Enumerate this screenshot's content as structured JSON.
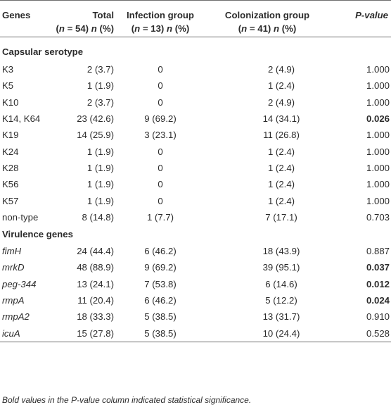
{
  "header": {
    "genes": "Genes",
    "total_line1": "Total",
    "total_line2": "(n = 54) n (%)",
    "infection_line1": "Infection group",
    "infection_line2": "(n = 13) n (%)",
    "colonization_line1": "Colonization group",
    "colonization_line2": "(n = 41) n (%)",
    "pvalue": "P-value"
  },
  "sections": [
    {
      "title": "Capsular serotype",
      "rows": [
        {
          "gene": "K3",
          "total": "2 (3.7)",
          "infection": "0",
          "colonization": "2 (4.9)",
          "p": "1.000",
          "significant": false
        },
        {
          "gene": "K5",
          "total": "1 (1.9)",
          "infection": "0",
          "colonization": "1 (2.4)",
          "p": "1.000",
          "significant": false
        },
        {
          "gene": "K10",
          "total": "2 (3.7)",
          "infection": "0",
          "colonization": "2 (4.9)",
          "p": "1.000",
          "significant": false
        },
        {
          "gene": "K14, K64",
          "total": "23 (42.6)",
          "infection": "9 (69.2)",
          "colonization": "14 (34.1)",
          "p": "0.026",
          "significant": true
        },
        {
          "gene": "K19",
          "total": "14 (25.9)",
          "infection": "3 (23.1)",
          "colonization": "11 (26.8)",
          "p": "1.000",
          "significant": false
        },
        {
          "gene": "K24",
          "total": "1 (1.9)",
          "infection": "0",
          "colonization": "1 (2.4)",
          "p": "1.000",
          "significant": false
        },
        {
          "gene": "K28",
          "total": "1 (1.9)",
          "infection": "0",
          "colonization": "1 (2.4)",
          "p": "1.000",
          "significant": false
        },
        {
          "gene": "K56",
          "total": "1 (1.9)",
          "infection": "0",
          "colonization": "1 (2.4)",
          "p": "1.000",
          "significant": false
        },
        {
          "gene": "K57",
          "total": "1 (1.9)",
          "infection": "0",
          "colonization": "1 (2.4)",
          "p": "1.000",
          "significant": false
        },
        {
          "gene": "non-type",
          "total": "8 (14.8)",
          "infection": "1 (7.7)",
          "colonization": "7 (17.1)",
          "p": "0.703",
          "significant": false
        }
      ]
    },
    {
      "title": "Virulence genes",
      "rows": [
        {
          "gene": "fimH",
          "total": "24 (44.4)",
          "infection": "6 (46.2)",
          "colonization": "18 (43.9)",
          "p": "0.887",
          "significant": false
        },
        {
          "gene": "mrkD",
          "total": "48 (88.9)",
          "infection": "9 (69.2)",
          "colonization": "39 (95.1)",
          "p": "0.037",
          "significant": true
        },
        {
          "gene": "peg-344",
          "total": "13 (24.1)",
          "infection": "7 (53.8)",
          "colonization": "6 (14.6)",
          "p": "0.012",
          "significant": true
        },
        {
          "gene": "rmpA",
          "total": "11 (20.4)",
          "infection": "6 (46.2)",
          "colonization": "5 (12.2)",
          "p": "0.024",
          "significant": true
        },
        {
          "gene": "rmpA2",
          "total": "18 (33.3)",
          "infection": "5 (38.5)",
          "colonization": "13 (31.7)",
          "p": "0.910",
          "significant": false
        },
        {
          "gene": "icuA",
          "total": "15 (27.8)",
          "infection": "5 (38.5)",
          "colonization": "10 (24.4)",
          "p": "0.528",
          "significant": false
        }
      ]
    }
  ],
  "footnote": "Bold values in the P-value column indicated statistical significance."
}
